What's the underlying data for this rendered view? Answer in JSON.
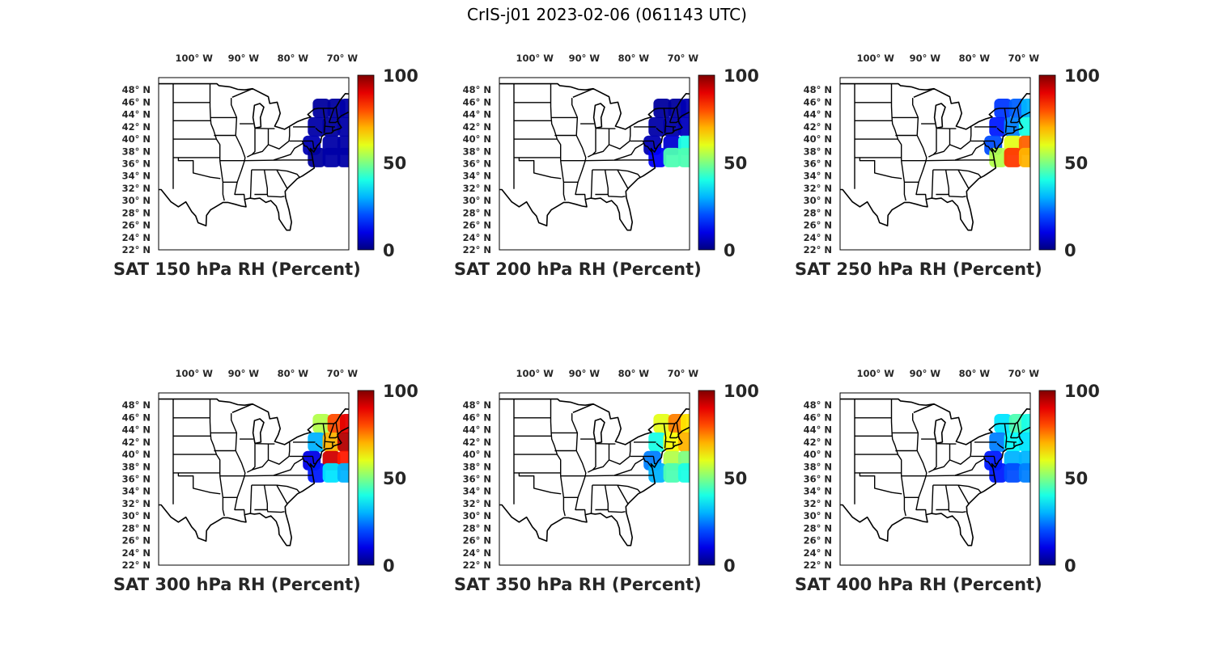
{
  "figure_title": "CrIS-j01 2023-02-06 (061143 UTC)",
  "lon_ticks": [
    {
      "lon": -100,
      "label": "100° W"
    },
    {
      "lon": -90,
      "label": "90° W"
    },
    {
      "lon": -80,
      "label": "80° W"
    },
    {
      "lon": -70,
      "label": "70° W"
    }
  ],
  "lat_ticks": [
    {
      "lat": 48,
      "label": "48° N"
    },
    {
      "lat": 46,
      "label": "46° N"
    },
    {
      "lat": 44,
      "label": "44° N"
    },
    {
      "lat": 42,
      "label": "42° N"
    },
    {
      "lat": 40,
      "label": "40° N"
    },
    {
      "lat": 38,
      "label": "38° N"
    },
    {
      "lat": 36,
      "label": "36° N"
    },
    {
      "lat": 34,
      "label": "34° N"
    },
    {
      "lat": 32,
      "label": "32° N"
    },
    {
      "lat": 30,
      "label": "30° N"
    },
    {
      "lat": 28,
      "label": "28° N"
    },
    {
      "lat": 26,
      "label": "26° N"
    },
    {
      "lat": 24,
      "label": "24° N"
    },
    {
      "lat": 22,
      "label": "22° N"
    }
  ],
  "map_extent": {
    "lon": [
      -107,
      -68.5
    ],
    "lat": [
      22,
      50
    ]
  },
  "colorbar": {
    "min": 0,
    "max": 100,
    "ticks": [
      0,
      50,
      100
    ],
    "colormap": "jet"
  },
  "panels": [
    {
      "title": "SAT 150 hPa RH (Percent)",
      "swath_cells": [
        [
          45,
          -74,
          3
        ],
        [
          45,
          -71,
          3
        ],
        [
          45,
          -68.5,
          4
        ],
        [
          42,
          -75,
          4
        ],
        [
          42,
          -72,
          3
        ],
        [
          42,
          -69,
          4
        ],
        [
          39,
          -76,
          5
        ],
        [
          39,
          -72,
          4
        ],
        [
          39,
          -69,
          4
        ],
        [
          37,
          -75,
          3
        ],
        [
          37,
          -72,
          4
        ],
        [
          37,
          -69,
          4
        ]
      ]
    },
    {
      "title": "SAT 200 hPa RH (Percent)",
      "swath_cells": [
        [
          45,
          -74,
          3
        ],
        [
          45,
          -71,
          3
        ],
        [
          45,
          -68.5,
          5
        ],
        [
          42,
          -75,
          4
        ],
        [
          42,
          -72,
          4
        ],
        [
          42,
          -69,
          6
        ],
        [
          39,
          -76,
          5
        ],
        [
          39,
          -72,
          8
        ],
        [
          39,
          -69,
          40
        ],
        [
          37,
          -75,
          12
        ],
        [
          37,
          -72,
          45
        ],
        [
          37,
          -69,
          45
        ]
      ]
    },
    {
      "title": "SAT 250 hPa RH (Percent)",
      "swath_cells": [
        [
          45,
          -74,
          18
        ],
        [
          45,
          -71,
          22
        ],
        [
          45,
          -68.5,
          30
        ],
        [
          42,
          -75,
          15
        ],
        [
          42,
          -72,
          25
        ],
        [
          42,
          -69,
          40
        ],
        [
          39,
          -76,
          20
        ],
        [
          39,
          -72,
          60
        ],
        [
          39,
          -69,
          78
        ],
        [
          37,
          -75,
          55
        ],
        [
          37,
          -72,
          82
        ],
        [
          37,
          -69,
          70
        ]
      ]
    },
    {
      "title": "SAT 300 hPa RH (Percent)",
      "swath_cells": [
        [
          45,
          -74,
          55
        ],
        [
          45,
          -71,
          80
        ],
        [
          45,
          -68.5,
          90
        ],
        [
          42,
          -75,
          30
        ],
        [
          42,
          -72,
          70
        ],
        [
          42,
          -69,
          95
        ],
        [
          39,
          -76,
          10
        ],
        [
          39,
          -72,
          92
        ],
        [
          39,
          -69,
          85
        ],
        [
          37,
          -75,
          15
        ],
        [
          37,
          -72,
          35
        ],
        [
          37,
          -69,
          30
        ]
      ]
    },
    {
      "title": "SAT 350 hPa RH (Percent)",
      "swath_cells": [
        [
          45,
          -74,
          60
        ],
        [
          45,
          -71,
          75
        ],
        [
          45,
          -68.5,
          65
        ],
        [
          42,
          -75,
          40
        ],
        [
          42,
          -72,
          62
        ],
        [
          42,
          -69,
          70
        ],
        [
          39,
          -76,
          25
        ],
        [
          39,
          -72,
          55
        ],
        [
          39,
          -69,
          50
        ],
        [
          37,
          -75,
          30
        ],
        [
          37,
          -72,
          45
        ],
        [
          37,
          -69,
          40
        ]
      ]
    },
    {
      "title": "SAT 400 hPa RH (Percent)",
      "swath_cells": [
        [
          45,
          -74,
          35
        ],
        [
          45,
          -71,
          45
        ],
        [
          45,
          -68.5,
          40
        ],
        [
          42,
          -75,
          25
        ],
        [
          42,
          -72,
          38
        ],
        [
          42,
          -69,
          35
        ],
        [
          39,
          -76,
          15
        ],
        [
          39,
          -72,
          30
        ],
        [
          39,
          -69,
          30
        ],
        [
          37,
          -75,
          15
        ],
        [
          37,
          -72,
          20
        ],
        [
          37,
          -69,
          25
        ]
      ]
    }
  ]
}
